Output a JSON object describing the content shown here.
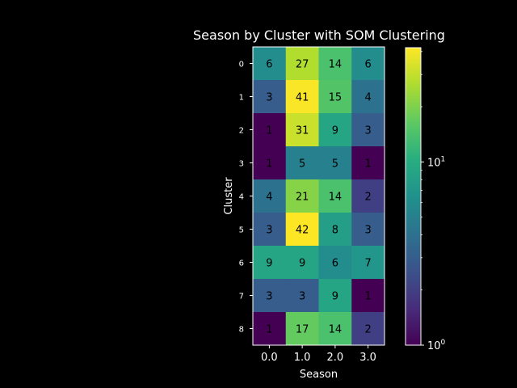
{
  "chart_data": {
    "type": "heatmap",
    "title": "Season by Cluster with SOM Clustering",
    "xlabel": "Season",
    "ylabel": "Cluster",
    "x_categories": [
      "0.0",
      "1.0",
      "2.0",
      "3.0"
    ],
    "y_categories": [
      "0",
      "1",
      "2",
      "3",
      "4",
      "5",
      "6",
      "7",
      "8"
    ],
    "values": [
      [
        6,
        27,
        14,
        6
      ],
      [
        3,
        41,
        15,
        4
      ],
      [
        1,
        31,
        9,
        3
      ],
      [
        1,
        5,
        5,
        1
      ],
      [
        4,
        21,
        14,
        2
      ],
      [
        3,
        42,
        8,
        3
      ],
      [
        9,
        9,
        6,
        7
      ],
      [
        3,
        3,
        9,
        1
      ],
      [
        1,
        17,
        14,
        2
      ]
    ],
    "color_scale": "log",
    "colormap": "viridis",
    "colorbar_range": [
      1,
      42
    ],
    "colorbar_ticks": [
      {
        "value": 1,
        "label": "10",
        "exp": "0"
      },
      {
        "value": 10,
        "label": "10",
        "exp": "1"
      }
    ],
    "background": "#000000",
    "foreground": "#ffffff",
    "annotation_color": "#000000"
  }
}
